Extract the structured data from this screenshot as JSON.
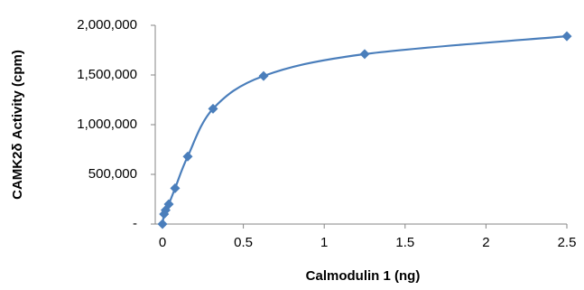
{
  "chart_data": {
    "type": "scatter",
    "x_label": "Calmodulin 1  (ng)",
    "y_label": "CAMK2δ  Activity (cpm)",
    "series": [
      {
        "color": "#4a7ebb",
        "x": [
          0,
          0.0098,
          0.0195,
          0.039,
          0.078,
          0.156,
          0.3125,
          0.625,
          1.25,
          2.5
        ],
        "values": [
          0,
          100000,
          140000,
          200000,
          360000,
          680000,
          1160000,
          1490000,
          1710000,
          1890000
        ]
      }
    ],
    "xlim": [
      0,
      2.5
    ],
    "xticks": [
      0,
      0.5,
      1,
      1.5,
      2,
      2.5
    ],
    "ylim": [
      0,
      2000000
    ],
    "yticks": [
      {
        "value": 0,
        "label": "-"
      },
      {
        "value": 500000,
        "label": "500,000"
      },
      {
        "value": 1000000,
        "label": "1,000,000"
      },
      {
        "value": 1500000,
        "label": "1,500,000"
      },
      {
        "value": 2000000,
        "label": "2,000,000"
      }
    ],
    "smooth": true
  }
}
